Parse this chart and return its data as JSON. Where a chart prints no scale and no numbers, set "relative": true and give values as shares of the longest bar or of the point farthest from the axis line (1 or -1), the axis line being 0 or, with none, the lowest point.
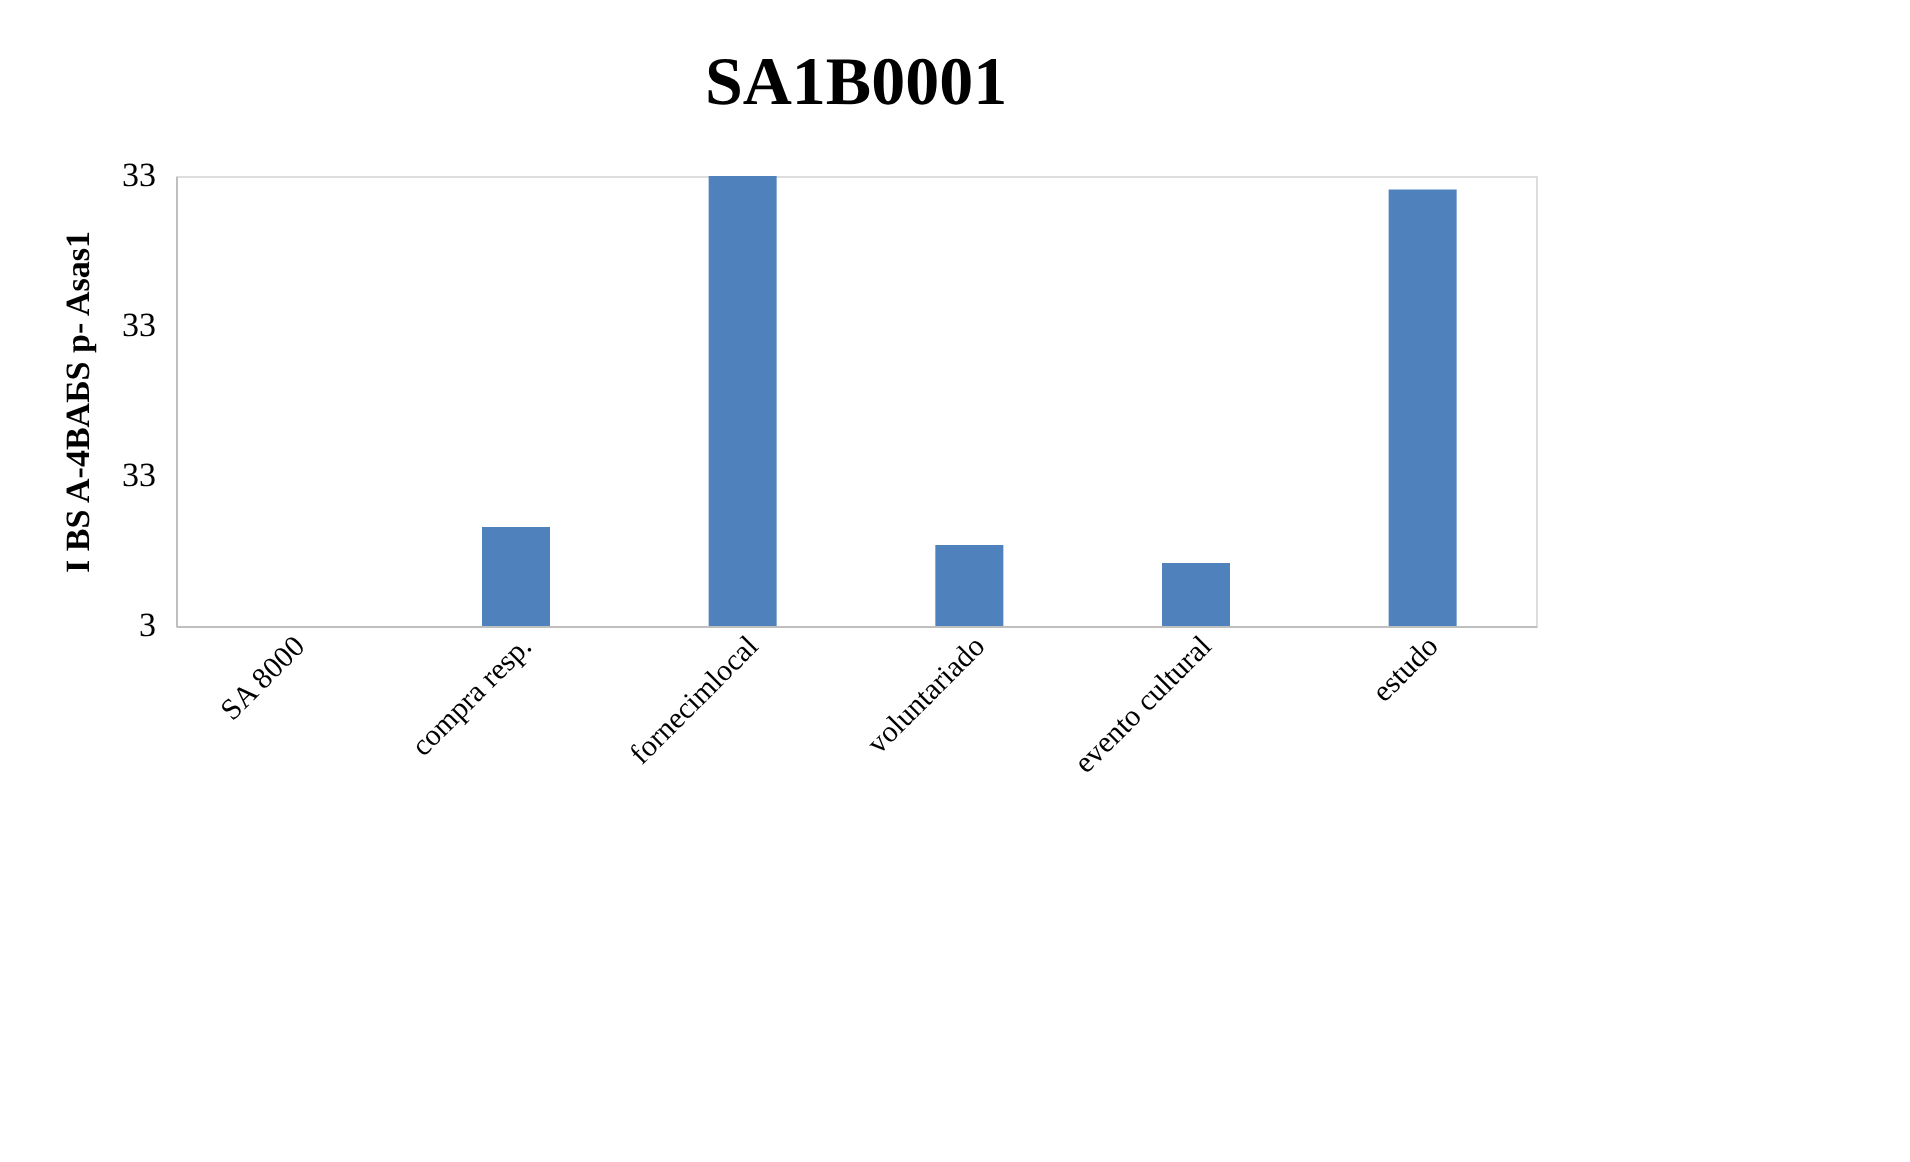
{
  "chart_data": {
    "type": "bar",
    "title": "SA1B0001",
    "ylabel": "I BS A-4BAБS p- Asas1",
    "categories": [
      "SA 8000",
      "compra resp.",
      "fornecimlocal",
      "voluntariado",
      "evento cultural",
      "estudo"
    ],
    "values": [
      0,
      0.22,
      1,
      0.18,
      0.14,
      0.97
    ],
    "relative": true,
    "color": "#4f81bd",
    "annotations": [
      "33",
      "33",
      "33",
      "3"
    ]
  }
}
